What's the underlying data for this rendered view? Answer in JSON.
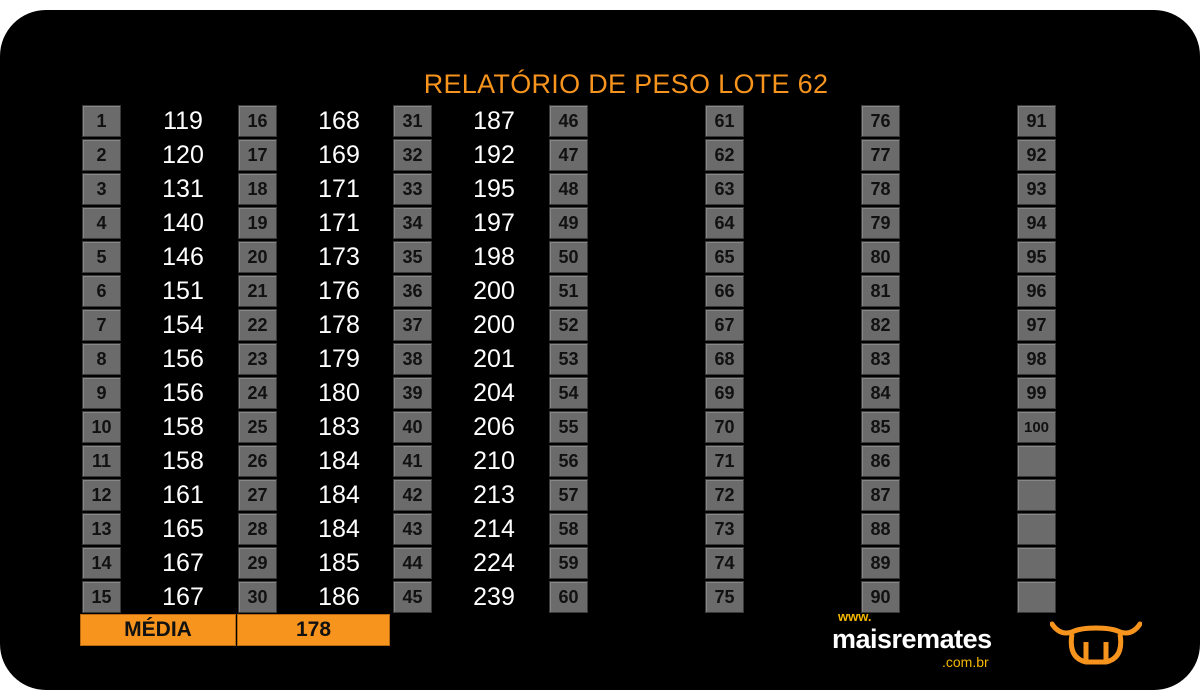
{
  "title": "RELATÓRIO DE PESO LOTE 62",
  "columns": [
    {
      "numbers": [
        1,
        2,
        3,
        4,
        5,
        6,
        7,
        8,
        9,
        10,
        11,
        12,
        13,
        14,
        15
      ],
      "weights": [
        119,
        120,
        131,
        140,
        146,
        151,
        154,
        156,
        156,
        158,
        158,
        161,
        165,
        167,
        167
      ]
    },
    {
      "numbers": [
        16,
        17,
        18,
        19,
        20,
        21,
        22,
        23,
        24,
        25,
        26,
        27,
        28,
        29,
        30
      ],
      "weights": [
        168,
        169,
        171,
        171,
        173,
        176,
        178,
        179,
        180,
        183,
        184,
        184,
        184,
        185,
        186
      ]
    },
    {
      "numbers": [
        31,
        32,
        33,
        34,
        35,
        36,
        37,
        38,
        39,
        40,
        41,
        42,
        43,
        44,
        45
      ],
      "weights": [
        187,
        192,
        195,
        197,
        198,
        200,
        200,
        201,
        204,
        206,
        210,
        213,
        214,
        224,
        239
      ]
    },
    {
      "numbers": [
        46,
        47,
        48,
        49,
        50,
        51,
        52,
        53,
        54,
        55,
        56,
        57,
        58,
        59,
        60
      ],
      "weights": []
    },
    {
      "numbers": [
        61,
        62,
        63,
        64,
        65,
        66,
        67,
        68,
        69,
        70,
        71,
        72,
        73,
        74,
        75
      ],
      "weights": []
    },
    {
      "numbers": [
        76,
        77,
        78,
        79,
        80,
        81,
        82,
        83,
        84,
        85,
        86,
        87,
        88,
        89,
        90
      ],
      "weights": []
    },
    {
      "numbers": [
        91,
        92,
        93,
        94,
        95,
        96,
        97,
        98,
        99,
        100,
        "",
        "",
        "",
        "",
        ""
      ],
      "weights": []
    }
  ],
  "media": {
    "label": "MÉDIA",
    "value": "178"
  },
  "logo": {
    "www": "www.",
    "name": "maisremates",
    "domain": ".com.br"
  },
  "colors": {
    "accent": "#f7941d",
    "cell": "#6b6b6b",
    "background": "#000000",
    "logo_yellow": "#f5b800"
  }
}
